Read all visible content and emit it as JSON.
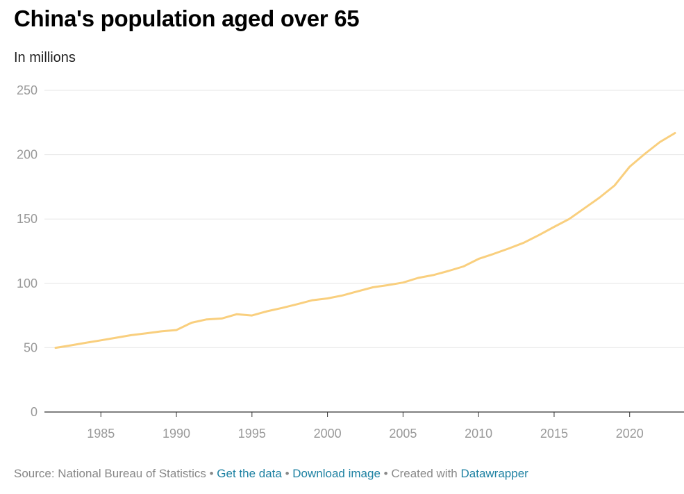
{
  "header": {
    "title": "China's population aged over 65",
    "subtitle": "In millions"
  },
  "footer": {
    "source": "Source: National Bureau of Statistics",
    "separator": " • ",
    "get_data": "Get the data",
    "download_image": "Download image",
    "created_with": "Created with ",
    "datawrapper": "Datawrapper"
  },
  "colors": {
    "line": "#f9cf7e",
    "grid": "#e6e6e6",
    "baseline": "#333333",
    "tick_label": "#999999",
    "link": "#1d81a2"
  },
  "chart_data": {
    "type": "line",
    "title": "China's population aged over 65",
    "subtitle": "In millions",
    "xlabel": "",
    "ylabel": "In millions",
    "xlim": [
      1982,
      2023
    ],
    "ylim": [
      0,
      250
    ],
    "yticks": [
      0,
      50,
      100,
      150,
      200,
      250
    ],
    "xticks": [
      1985,
      1990,
      1995,
      2000,
      2005,
      2010,
      2015,
      2020
    ],
    "grid": true,
    "series": [
      {
        "name": "Population aged over 65",
        "x": [
          1982,
          1983,
          1984,
          1985,
          1986,
          1987,
          1988,
          1989,
          1990,
          1991,
          1992,
          1993,
          1994,
          1995,
          1996,
          1997,
          1998,
          1999,
          2000,
          2001,
          2002,
          2003,
          2004,
          2005,
          2006,
          2007,
          2008,
          2009,
          2010,
          2011,
          2012,
          2013,
          2014,
          2015,
          2016,
          2017,
          2018,
          2019,
          2020,
          2021,
          2022,
          2023
        ],
        "values": [
          49.9,
          51.8,
          53.8,
          55.7,
          57.7,
          59.7,
          61.1,
          62.7,
          63.7,
          69.4,
          72.0,
          72.7,
          76.0,
          75.0,
          78.3,
          80.9,
          83.8,
          86.9,
          88.3,
          90.6,
          93.8,
          96.9,
          98.6,
          100.6,
          104.2,
          106.4,
          109.6,
          113.1,
          119.0,
          122.9,
          127.1,
          131.6,
          137.5,
          143.9,
          150.0,
          158.3,
          166.6,
          176.0,
          190.6,
          200.6,
          209.8,
          216.8
        ]
      }
    ]
  }
}
